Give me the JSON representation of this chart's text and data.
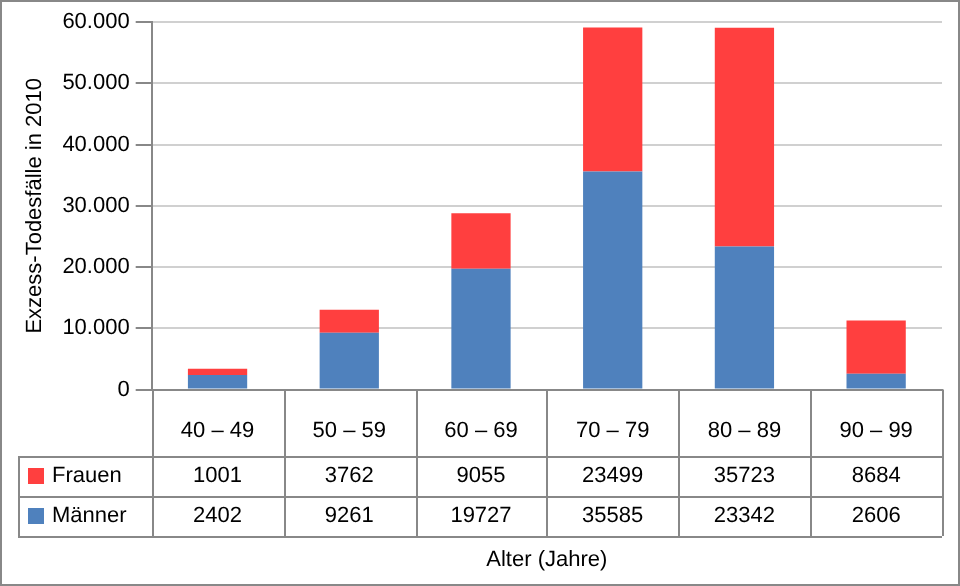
{
  "chart_data": {
    "type": "bar",
    "stacked": true,
    "xlabel": "Alter (Jahre)",
    "ylabel": "Exzess-Todesfälle in 2010",
    "categories": [
      "40 – 49",
      "50 – 59",
      "60 – 69",
      "70 – 79",
      "80 – 89",
      "90 – 99"
    ],
    "series": [
      {
        "name": "Männer",
        "color": "#4f81bd",
        "values": [
          2402,
          9261,
          19727,
          35585,
          23342,
          2606
        ]
      },
      {
        "name": "Frauen",
        "color": "#ff3f3f",
        "values": [
          1001,
          3762,
          9055,
          23499,
          35723,
          8684
        ]
      }
    ],
    "ylim": [
      0,
      60000
    ],
    "yticks": [
      0,
      {
        "value": 10000,
        "label": "10.000"
      },
      {
        "value": 20000,
        "label": "20.000"
      },
      {
        "value": 30000,
        "label": "30.000"
      },
      {
        "value": 40000,
        "label": "40.000"
      },
      {
        "value": 50000,
        "label": "50.000"
      },
      {
        "value": 60000,
        "label": "60.000"
      }
    ],
    "grid": "y",
    "legend": "bottom",
    "data_labels": true
  }
}
